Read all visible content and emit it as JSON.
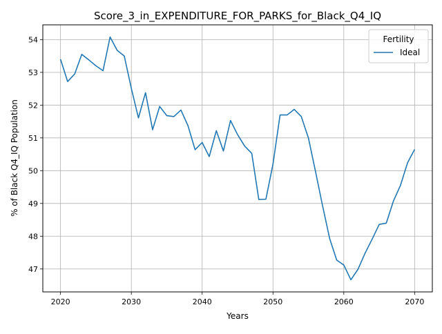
{
  "chart_data": {
    "type": "line",
    "title": "Score_3_in_EXPENDITURE_FOR_PARKS_for_Black_Q4_IQ",
    "xlabel": "Years",
    "ylabel": "% of Black Q4_IQ Population",
    "xlim": [
      2017.5,
      2072.5
    ],
    "ylim": [
      46.3,
      54.45
    ],
    "xticks": [
      2020,
      2030,
      2040,
      2050,
      2060,
      2070
    ],
    "yticks": [
      47,
      48,
      49,
      50,
      51,
      52,
      53,
      54
    ],
    "grid": true,
    "legend": {
      "title": "Fertility",
      "position": "top-right"
    },
    "series": [
      {
        "name": "Ideal",
        "color": "#1f77b4",
        "x": [
          2020,
          2021,
          2022,
          2023,
          2024,
          2025,
          2026,
          2027,
          2028,
          2029,
          2030,
          2031,
          2032,
          2033,
          2034,
          2035,
          2036,
          2037,
          2038,
          2039,
          2040,
          2041,
          2042,
          2043,
          2044,
          2045,
          2046,
          2047,
          2048,
          2049,
          2050,
          2051,
          2052,
          2053,
          2054,
          2055,
          2056,
          2057,
          2058,
          2059,
          2060,
          2061,
          2062,
          2063,
          2064,
          2065,
          2066,
          2067,
          2068,
          2069,
          2070
        ],
        "y": [
          53.4,
          52.72,
          52.95,
          53.55,
          53.38,
          53.2,
          53.05,
          54.08,
          53.67,
          53.5,
          52.51,
          51.61,
          52.38,
          51.25,
          51.96,
          51.68,
          51.65,
          51.85,
          51.37,
          50.64,
          50.86,
          50.43,
          51.22,
          50.6,
          51.53,
          51.1,
          50.75,
          50.53,
          49.12,
          49.13,
          50.2,
          51.7,
          51.7,
          51.87,
          51.65,
          51.0,
          49.98,
          48.93,
          47.93,
          47.27,
          47.12,
          46.67,
          46.99,
          47.48,
          47.91,
          48.36,
          48.4,
          49.07,
          49.55,
          50.24,
          50.65
        ]
      }
    ]
  }
}
